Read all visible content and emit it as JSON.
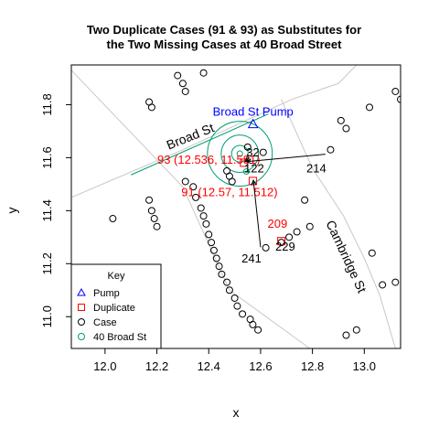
{
  "chart_data": {
    "type": "scatter",
    "title_lines": [
      "Two Duplicate Cases (91 & 93) as Substitutes for",
      "the Two Missing Cases at 40 Broad Street"
    ],
    "xlabel": "x",
    "ylabel": "y",
    "xlim": [
      11.87,
      13.14
    ],
    "ylim": [
      10.88,
      11.95
    ],
    "x_ticks": [
      12.0,
      12.2,
      12.4,
      12.6,
      12.8,
      13.0
    ],
    "x_tick_labels": [
      "12.0",
      "12.2",
      "12.4",
      "12.6",
      "12.8",
      "13.0"
    ],
    "y_ticks": [
      11.0,
      11.2,
      11.4,
      11.6,
      11.8
    ],
    "y_tick_labels": [
      "11.0",
      "11.2",
      "11.4",
      "11.6",
      "11.8"
    ],
    "colors": {
      "pump": "#0000ff",
      "duplicate": "#ff0000",
      "case": "#000000",
      "broad40": "#009e73",
      "road": "#c8c8c8"
    },
    "roads": [
      {
        "points": [
          [
            11.87,
            11.93
          ],
          [
            12.3,
            11.49
          ],
          [
            12.48,
            11.1
          ],
          [
            12.79,
            10.88
          ]
        ]
      },
      {
        "points": [
          [
            11.87,
            11.45
          ],
          [
            12.3,
            11.63
          ],
          [
            12.72,
            11.82
          ],
          [
            12.9,
            11.88
          ],
          [
            12.97,
            11.95
          ]
        ]
      },
      {
        "points": [
          [
            12.68,
            11.82
          ],
          [
            12.8,
            11.56
          ],
          [
            12.92,
            11.38
          ],
          [
            13.0,
            11.22
          ],
          [
            13.06,
            11.08
          ],
          [
            13.12,
            10.88
          ]
        ]
      }
    ],
    "road_names": [
      {
        "text": "Broad St",
        "x": 12.335,
        "y": 11.665,
        "angle": -22
      },
      {
        "text": "Cambridge St",
        "x": 12.915,
        "y": 11.22,
        "angle": 65
      }
    ],
    "broad40_segment": [
      [
        12.1,
        11.535
      ],
      [
        12.63,
        11.765
      ]
    ],
    "pump": {
      "x": 12.571,
      "y": 11.727,
      "label": "Broad St Pump"
    },
    "circles": [
      {
        "x": 12.52,
        "y": 11.615,
        "r": 0.032
      },
      {
        "x": 12.52,
        "y": 11.615,
        "r": 0.072
      },
      {
        "x": 12.52,
        "y": 11.615,
        "r": 0.125
      }
    ],
    "broad40_points": [
      {
        "x": 12.52,
        "y": 11.615
      },
      {
        "x": 12.545,
        "y": 11.548
      }
    ],
    "duplicates": [
      {
        "label": "93 (12.536, 11.581)",
        "x": 12.536,
        "y": 11.581,
        "label_x": 12.4,
        "label_y": 11.578
      },
      {
        "label": "91 (12.57, 11.512)",
        "x": 12.57,
        "y": 11.512,
        "label_x": 12.48,
        "label_y": 11.455
      },
      {
        "label": "209",
        "x": 12.68,
        "y": 11.285,
        "label_x": 12.665,
        "label_y": 11.335
      }
    ],
    "arrows": [
      {
        "from": [
          12.85,
          11.613
        ],
        "to": [
          12.545,
          11.585
        ]
      },
      {
        "from": [
          12.6,
          11.262
        ],
        "to": [
          12.572,
          11.515
        ]
      },
      {
        "from": [
          12.557,
          11.6
        ],
        "to": [
          12.541,
          11.585
        ]
      }
    ],
    "cases": [
      [
        12.28,
        11.91
      ],
      [
        12.3,
        11.88
      ],
      [
        12.31,
        11.85
      ],
      [
        12.38,
        11.92
      ],
      [
        12.17,
        11.81
      ],
      [
        12.18,
        11.79
      ],
      [
        12.03,
        11.37
      ],
      [
        12.17,
        11.44
      ],
      [
        12.18,
        11.4
      ],
      [
        12.19,
        11.37
      ],
      [
        12.2,
        11.34
      ],
      [
        12.31,
        11.51
      ],
      [
        12.34,
        11.49
      ],
      [
        12.35,
        11.45
      ],
      [
        12.37,
        11.41
      ],
      [
        12.38,
        11.38
      ],
      [
        12.39,
        11.35
      ],
      [
        12.4,
        11.31
      ],
      [
        12.41,
        11.28
      ],
      [
        12.42,
        11.25
      ],
      [
        12.43,
        11.22
      ],
      [
        12.44,
        11.19
      ],
      [
        12.45,
        11.16
      ],
      [
        12.47,
        11.13
      ],
      [
        12.48,
        11.1
      ],
      [
        12.5,
        11.07
      ],
      [
        12.51,
        11.04
      ],
      [
        12.53,
        11.01
      ],
      [
        12.56,
        10.99
      ],
      [
        12.57,
        10.97
      ],
      [
        12.59,
        10.95
      ],
      [
        12.47,
        11.55
      ],
      [
        12.48,
        11.53
      ],
      [
        12.49,
        11.51
      ],
      [
        12.55,
        11.64
      ],
      [
        12.61,
        11.62
      ],
      [
        12.62,
        11.26
      ],
      [
        12.68,
        11.28
      ],
      [
        12.71,
        11.3
      ],
      [
        12.74,
        11.32
      ],
      [
        12.79,
        11.34
      ],
      [
        12.77,
        11.44
      ],
      [
        12.87,
        11.63
      ],
      [
        12.91,
        11.74
      ],
      [
        12.93,
        11.71
      ],
      [
        13.02,
        11.79
      ],
      [
        12.93,
        10.93
      ],
      [
        12.97,
        10.95
      ],
      [
        13.03,
        11.24
      ],
      [
        13.07,
        11.12
      ],
      [
        13.12,
        11.13
      ],
      [
        13.12,
        11.85
      ],
      [
        13.14,
        11.82
      ]
    ],
    "case_labels": [
      {
        "text": "32",
        "x": 12.57,
        "y": 11.605
      },
      {
        "text": "122",
        "x": 12.575,
        "y": 11.545
      },
      {
        "text": "214",
        "x": 12.815,
        "y": 11.545
      },
      {
        "text": "241",
        "x": 12.565,
        "y": 11.205
      },
      {
        "text": "229",
        "x": 12.695,
        "y": 11.25
      }
    ],
    "legend": {
      "title": "Key",
      "placement": "bottom-left",
      "items": [
        {
          "label": "Pump",
          "symbol": "triangle",
          "color": "#0000ff"
        },
        {
          "label": "Duplicate",
          "symbol": "square",
          "color": "#ff0000"
        },
        {
          "label": "Case",
          "symbol": "circle",
          "color": "#000000"
        },
        {
          "label": "40 Broad St",
          "symbol": "circle",
          "color": "#009e73"
        }
      ]
    },
    "grid": false
  }
}
